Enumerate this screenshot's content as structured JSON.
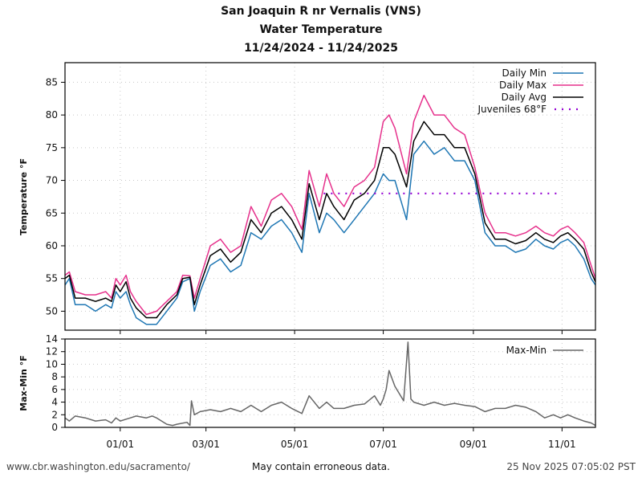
{
  "title": {
    "line1": "San Joaquin R nr Vernalis (VNS)",
    "line2": "Water Temperature",
    "line3": "11/24/2024 - 11/24/2025"
  },
  "footer": {
    "url": "www.cbr.washington.edu/sacramento/",
    "disclaimer": "May contain erroneous data.",
    "timestamp": "25 Nov 2025 07:05:02 PST"
  },
  "colors": {
    "daily_min": "#1f77b4",
    "daily_max": "#e6318c",
    "daily_avg": "#000000",
    "juveniles": "#9400d3",
    "max_min": "#666666"
  },
  "chart_data": [
    {
      "type": "line",
      "name": "temperature",
      "ylabel": "Temperature °F",
      "xlabel": "",
      "x_start": "2024-11-24",
      "x_end": "2025-11-24",
      "xlim_days": [
        0,
        365
      ],
      "ylim": [
        47.1,
        88
      ],
      "grid": true,
      "legend": "top-right",
      "yticks": [
        50,
        55,
        60,
        65,
        70,
        75,
        80,
        85
      ],
      "xticks": [
        {
          "label": "01/01",
          "day": 38
        },
        {
          "label": "03/01",
          "day": 97
        },
        {
          "label": "05/01",
          "day": 158
        },
        {
          "label": "07/01",
          "day": 219
        },
        {
          "label": "09/01",
          "day": 281
        },
        {
          "label": "11/01",
          "day": 342
        }
      ],
      "x_days": [
        0,
        3,
        7,
        14,
        21,
        28,
        32,
        35,
        38,
        42,
        45,
        49,
        56,
        63,
        70,
        77,
        81,
        86,
        89,
        93,
        100,
        107,
        114,
        121,
        128,
        135,
        142,
        149,
        156,
        163,
        168,
        175,
        180,
        185,
        192,
        199,
        206,
        213,
        219,
        223,
        227,
        235,
        240,
        247,
        254,
        261,
        268,
        275,
        282,
        289,
        296,
        303,
        310,
        317,
        324,
        330,
        336,
        341,
        346,
        351,
        357,
        362,
        365
      ],
      "series": [
        {
          "name": "Daily Min",
          "values": [
            54,
            55,
            51,
            51,
            50,
            51,
            50.5,
            53,
            52,
            53,
            51,
            49,
            48,
            48,
            50,
            52,
            54.5,
            55,
            50,
            53,
            57,
            58,
            56,
            57,
            62,
            61,
            63,
            64,
            62,
            59,
            68,
            62,
            65,
            64,
            62,
            64,
            66,
            68,
            71,
            70,
            70,
            64,
            74,
            76,
            74,
            75,
            73,
            73,
            70,
            62,
            60,
            60,
            59,
            59.5,
            61,
            60,
            59.5,
            60.5,
            61,
            60,
            58,
            55,
            54
          ]
        },
        {
          "name": "Daily Max",
          "values": [
            55.5,
            56,
            53,
            52.5,
            52.5,
            53,
            52,
            55,
            54,
            55.5,
            53,
            51.5,
            49.5,
            50,
            51.5,
            53,
            55.5,
            55.4,
            52,
            55,
            60,
            61,
            59,
            60,
            66,
            63,
            67,
            68,
            66,
            62.5,
            71.5,
            66,
            71,
            68,
            66,
            69,
            70,
            72,
            79,
            80,
            78,
            71,
            79,
            83,
            80,
            80,
            78,
            77,
            72,
            65,
            62,
            62,
            61.5,
            62,
            63,
            62,
            61.5,
            62.5,
            63,
            62,
            60.5,
            57,
            55
          ]
        },
        {
          "name": "Daily Avg",
          "values": [
            55,
            55.5,
            52,
            52,
            51.5,
            52,
            51.5,
            54,
            53,
            54.5,
            52,
            50.5,
            49,
            49,
            51,
            52.5,
            55,
            55.2,
            51,
            54,
            58.5,
            59.5,
            57.5,
            59,
            64,
            62,
            65,
            66,
            64,
            61,
            69.5,
            64,
            68,
            66,
            64,
            67,
            68,
            70,
            75,
            75,
            74,
            69,
            76,
            79,
            77,
            77,
            75,
            75,
            71,
            63.5,
            61,
            61,
            60.3,
            60.8,
            62,
            61,
            60.5,
            61.5,
            62,
            61,
            59.5,
            56,
            54.5
          ]
        },
        {
          "name": "Juveniles 68°F",
          "values": [
            68,
            68
          ],
          "x_days_override": [
            178,
            340
          ],
          "style": "dotted"
        }
      ]
    },
    {
      "type": "line",
      "name": "max-min",
      "ylabel": "Max-Min °F",
      "xlabel": "",
      "ylim": [
        0,
        14
      ],
      "yticks": [
        0,
        2,
        4,
        6,
        8,
        10,
        12,
        14
      ],
      "grid": true,
      "legend": "top-right",
      "x_days": [
        0,
        3,
        7,
        14,
        21,
        28,
        32,
        35,
        38,
        42,
        45,
        49,
        56,
        60,
        63,
        70,
        74,
        77,
        84,
        86,
        87,
        89,
        93,
        100,
        107,
        114,
        121,
        128,
        135,
        142,
        149,
        156,
        163,
        168,
        175,
        180,
        185,
        192,
        199,
        206,
        213,
        217,
        219,
        221,
        223,
        227,
        233,
        236,
        238,
        240,
        247,
        254,
        261,
        268,
        275,
        282,
        289,
        296,
        303,
        310,
        317,
        324,
        330,
        336,
        341,
        346,
        351,
        357,
        362,
        365
      ],
      "series": [
        {
          "name": "Max-Min",
          "values": [
            1.5,
            1,
            1.8,
            1.5,
            1,
            1.2,
            0.7,
            1.5,
            1,
            1.3,
            1.5,
            1.8,
            1.5,
            1.8,
            1.5,
            0.5,
            0.3,
            0.5,
            0.8,
            0.3,
            4.2,
            2,
            2.5,
            2.8,
            2.5,
            3,
            2.5,
            3.5,
            2.5,
            3.5,
            4,
            3,
            2.2,
            5,
            3,
            4,
            3,
            3,
            3.5,
            3.7,
            5,
            3.5,
            4.5,
            6,
            9,
            6.5,
            4.2,
            13.5,
            4.5,
            4,
            3.5,
            4,
            3.5,
            3.8,
            3.5,
            3.3,
            2.5,
            3,
            3,
            3.5,
            3.2,
            2.5,
            1.5,
            2,
            1.5,
            2,
            1.5,
            1,
            0.7,
            0.3
          ]
        }
      ]
    }
  ]
}
